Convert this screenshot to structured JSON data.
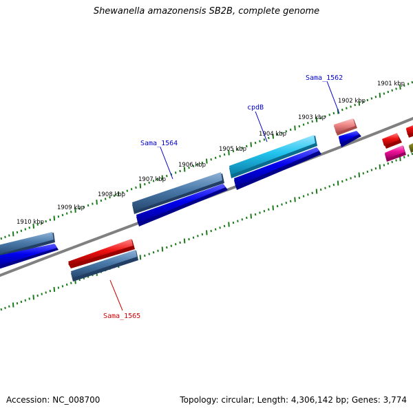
{
  "title": "Shewanella amazonensis SB2B, complete genome",
  "footer": {
    "accession": "Accession: NC_008700",
    "summary": "Topology: circular; Length: 4,306,142 bp; Genes: 3,774"
  },
  "scale_labels": [
    "1901 kbp",
    "1902 kbp",
    "1903 kbp",
    "1904 kbp",
    "1905 kbp",
    "1906 kbp",
    "1907 kbp",
    "1908 kbp",
    "1909 kbp",
    "1910 kbp"
  ],
  "gene_labels": [
    {
      "name": "Sama_1562",
      "color": "#0000cc"
    },
    {
      "name": "cpdB",
      "color": "#0000cc"
    },
    {
      "name": "Sama_1564",
      "color": "#0000cc"
    },
    {
      "name": "Sama_1565",
      "color": "#cc0000"
    }
  ],
  "colors": {
    "backbone": "#808080",
    "tick": "#1a7a1a",
    "cds_blue": "#0000ee",
    "gene_steel": "#4a7aaa",
    "gene_cyan": "#22c4ee",
    "gene_red": "#ee1111",
    "gene_pink": "#ee8888",
    "gene_magenta": "#ee1199",
    "gene_olive": "#888822"
  }
}
